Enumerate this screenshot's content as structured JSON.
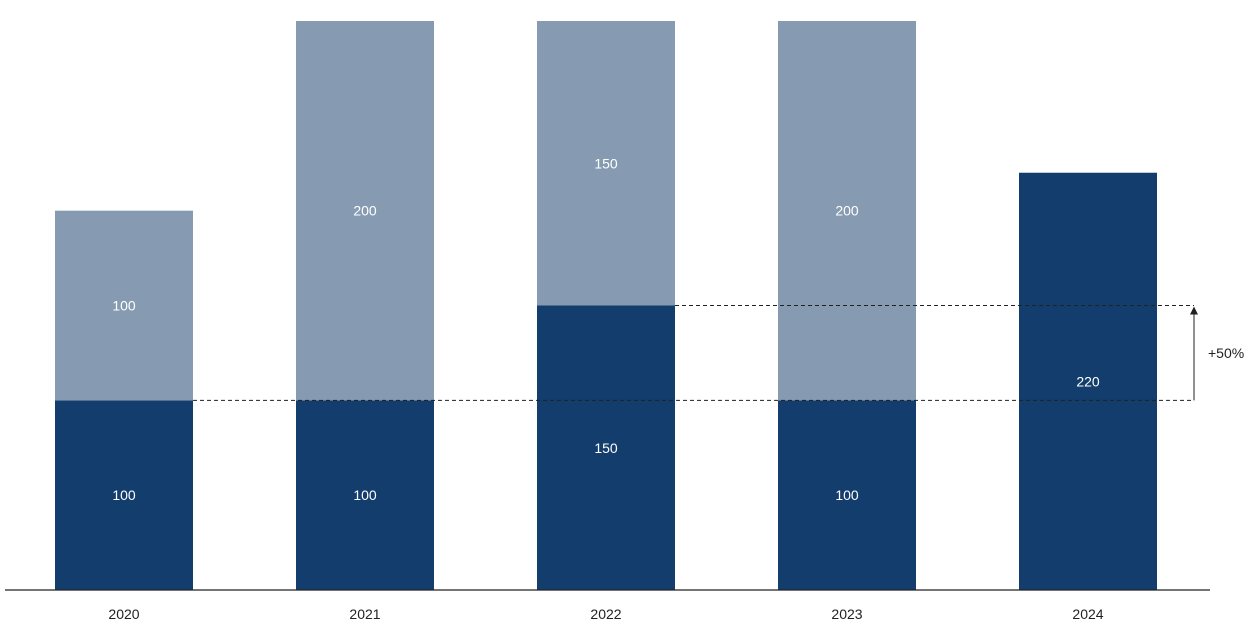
{
  "chart_data": {
    "type": "bar",
    "stacked": true,
    "categories": [
      "2020",
      "2021",
      "2022",
      "2023",
      "2024"
    ],
    "series": [
      {
        "values": [
          100,
          100,
          150,
          100,
          220
        ],
        "color": "#133d6c"
      },
      {
        "values": [
          100,
          200,
          150,
          200,
          0
        ],
        "color": "#869bb2"
      }
    ],
    "segment_labels": [
      [
        "100",
        "100",
        "150",
        "100",
        "220"
      ],
      [
        "100",
        "200",
        "150",
        "200",
        ""
      ]
    ],
    "annotation": {
      "label": "+50%",
      "from_value": 100,
      "to_value": 150
    },
    "title": "",
    "xlabel": "",
    "ylabel": "",
    "ylim": [
      0,
      300
    ],
    "grid": false,
    "legend": "none"
  }
}
